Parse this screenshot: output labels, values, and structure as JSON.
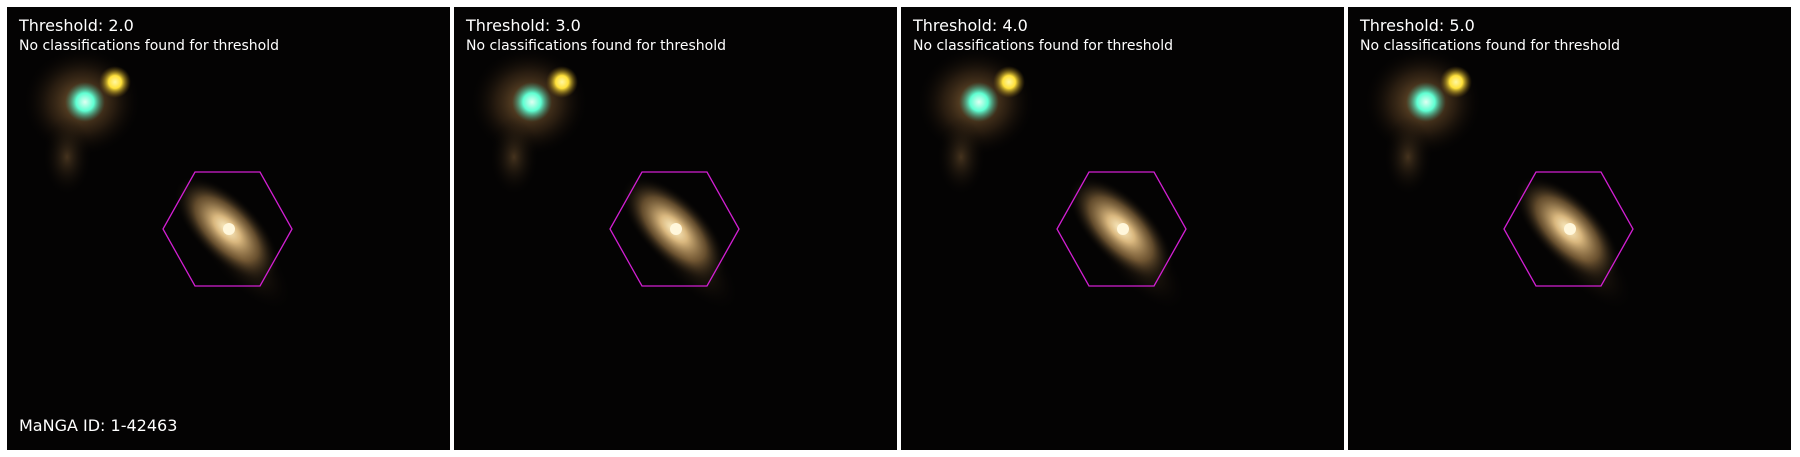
{
  "panels": [
    {
      "title": "Threshold: 2.0",
      "subtitle": "No classifications found for threshold",
      "threshold": 2.0
    },
    {
      "title": "Threshold: 3.0",
      "subtitle": "No classifications found for threshold",
      "threshold": 3.0
    },
    {
      "title": "Threshold: 4.0",
      "subtitle": "No classifications found for threshold",
      "threshold": 4.0
    },
    {
      "title": "Threshold: 5.0",
      "subtitle": "No classifications found for threshold",
      "threshold": 5.0
    }
  ],
  "manga_id": "MaNGA ID: 1-42463",
  "colors": {
    "background": "#040303",
    "hexagon": "#d21fd2",
    "text": "#ffffff",
    "galaxy_core": "#fff2c8",
    "star_yellow": "#ffe13a",
    "star_cyan": "#5fffd2"
  }
}
